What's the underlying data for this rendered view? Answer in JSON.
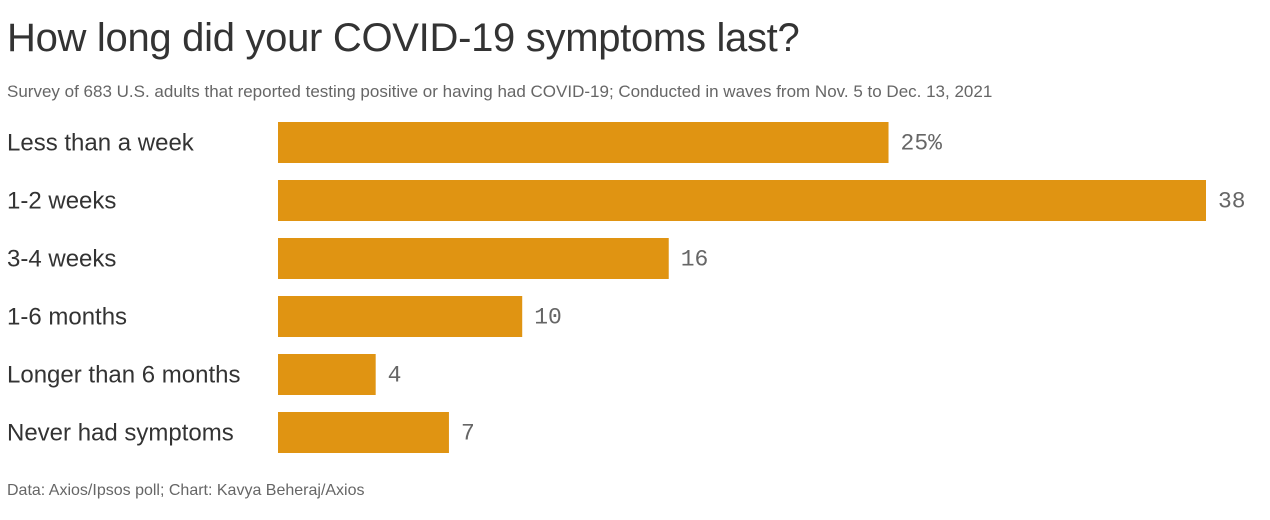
{
  "chart_data": {
    "type": "bar",
    "orientation": "horizontal",
    "title": "How long did your COVID-19 symptoms last?",
    "subtitle": "Survey of 683 U.S. adults that reported testing positive or having had COVID-19; Conducted in waves from Nov. 5 to Dec. 13, 2021",
    "categories": [
      "Less than a week",
      "1-2 weeks",
      "3-4 weeks",
      "1-6 months",
      "Longer than 6 months",
      "Never had symptoms"
    ],
    "values": [
      25,
      38,
      16,
      10,
      4,
      7
    ],
    "value_labels": [
      "25%",
      "38",
      "16",
      "10",
      "4",
      "7"
    ],
    "bar_color": "#e09412",
    "xlim": [
      0,
      38
    ],
    "grid": false,
    "source": "Data: Axios/Ipsos poll; Chart: Kavya Beheraj/Axios"
  }
}
